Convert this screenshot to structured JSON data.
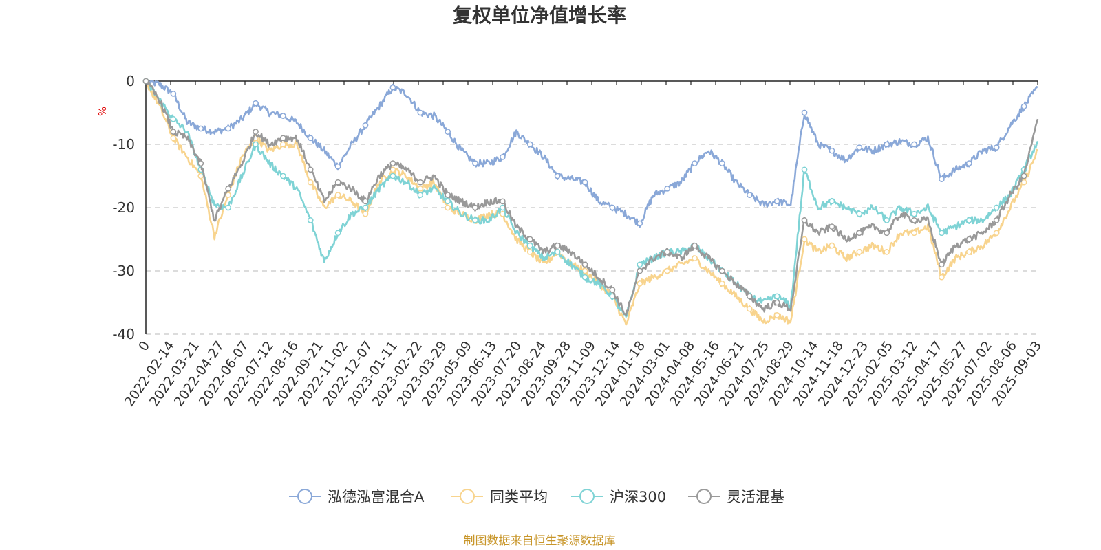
{
  "chart_data": {
    "type": "line",
    "title": "复权单位净值增长率",
    "ylabel": "%",
    "ylim": [
      -40,
      0
    ],
    "yticks": [
      "0",
      "-10",
      "-20",
      "-30",
      "-40"
    ],
    "x_ticks": [
      "0",
      "2022-02-14",
      "2022-03-21",
      "2022-04-27",
      "2022-06-07",
      "2022-07-12",
      "2022-08-16",
      "2022-09-21",
      "2022-11-02",
      "2022-12-07",
      "2023-01-11",
      "2023-02-22",
      "2023-03-29",
      "2023-05-09",
      "2023-06-13",
      "2023-07-20",
      "2023-08-24",
      "2023-09-28",
      "2023-11-09",
      "2023-12-14",
      "2024-01-18",
      "2024-03-01",
      "2024-04-08",
      "2024-05-16",
      "2024-06-21",
      "2024-07-25",
      "2024-08-29",
      "2024-10-14",
      "2024-11-18",
      "2024-12-23",
      "2025-02-05",
      "2025-03-12",
      "2025-04-17",
      "2025-05-27",
      "2025-07-02",
      "2025-08-06",
      "2025-09-03"
    ],
    "grid": "dashed horizontal",
    "legend_position": "bottom",
    "series": [
      {
        "name": "泓德泓富混合A",
        "color": "#8aa8d8",
        "values": [
          0,
          -0.5,
          -2,
          -6.5,
          -7.5,
          -8,
          -7.5,
          -6,
          -3.5,
          -5,
          -5.5,
          -6.5,
          -9,
          -11,
          -13.5,
          -10,
          -7,
          -4,
          -1,
          -2,
          -5,
          -5.5,
          -8,
          -11,
          -13,
          -13,
          -12,
          -8,
          -10,
          -12,
          -15,
          -15.5,
          -16,
          -19,
          -20,
          -21,
          -22.5,
          -18,
          -17,
          -16,
          -13,
          -11,
          -13,
          -16,
          -18,
          -19.5,
          -19,
          -19.5,
          -5,
          -10,
          -11,
          -12.5,
          -10.5,
          -11,
          -10,
          -9.5,
          -10,
          -9,
          -15.5,
          -14,
          -13,
          -11,
          -10.5,
          -7,
          -4,
          -1
        ]
      },
      {
        "name": "同类平均",
        "color": "#f8d48e",
        "values": [
          0,
          -4,
          -9,
          -12,
          -15,
          -24.5,
          -18,
          -12,
          -9,
          -11,
          -10,
          -10,
          -16,
          -20,
          -18,
          -19,
          -21,
          -16,
          -14,
          -15,
          -17,
          -16,
          -20,
          -21,
          -22,
          -21,
          -21,
          -25,
          -27,
          -29,
          -27,
          -29,
          -30,
          -32,
          -34,
          -38.5,
          -32,
          -31,
          -30,
          -29,
          -28,
          -30,
          -32,
          -34,
          -36,
          -38,
          -37,
          -38,
          -25,
          -27,
          -26,
          -28,
          -27,
          -26,
          -27,
          -24,
          -24,
          -23,
          -31,
          -28,
          -27,
          -26,
          -24,
          -20,
          -16,
          -11
        ]
      },
      {
        "name": "沪深300",
        "color": "#7fd3d5",
        "values": [
          0,
          -3,
          -6,
          -8,
          -14,
          -19.5,
          -20,
          -15,
          -10,
          -13,
          -15,
          -17,
          -22,
          -28.5,
          -24,
          -21,
          -20,
          -17,
          -15,
          -16,
          -18,
          -17,
          -19,
          -21,
          -22,
          -22,
          -20,
          -24,
          -26,
          -28,
          -27,
          -29,
          -31,
          -32,
          -34,
          -37.5,
          -29,
          -28,
          -27,
          -27,
          -26,
          -28,
          -30,
          -32,
          -34,
          -35,
          -34,
          -35.5,
          -14,
          -20,
          -19,
          -20,
          -21,
          -20,
          -22,
          -20,
          -21,
          -20,
          -24,
          -23,
          -22,
          -22,
          -20,
          -18,
          -14,
          -9.5
        ]
      },
      {
        "name": "灵活混基",
        "color": "#999999",
        "values": [
          0,
          -3,
          -8,
          -9,
          -13,
          -22,
          -17,
          -13,
          -8,
          -10,
          -9,
          -9,
          -14,
          -19,
          -16,
          -17,
          -19,
          -15,
          -13,
          -14,
          -16,
          -15,
          -18,
          -19,
          -20,
          -19,
          -19,
          -23,
          -25,
          -27,
          -26,
          -27,
          -29,
          -31,
          -33,
          -37,
          -30,
          -28,
          -27,
          -28,
          -26,
          -28,
          -30,
          -32,
          -34,
          -36,
          -35,
          -36,
          -22,
          -24,
          -23,
          -25,
          -24,
          -23,
          -24,
          -21,
          -22,
          -22,
          -29,
          -26,
          -25,
          -24,
          -22,
          -18,
          -15,
          -6
        ]
      }
    ]
  },
  "legend": {
    "items": [
      {
        "label": "泓德泓富混合A",
        "color": "#8aa8d8"
      },
      {
        "label": "同类平均",
        "color": "#f8d48e"
      },
      {
        "label": "沪深300",
        "color": "#7fd3d5"
      },
      {
        "label": "灵活混基",
        "color": "#999999"
      }
    ]
  },
  "source_text": "制图数据来自恒生聚源数据库"
}
